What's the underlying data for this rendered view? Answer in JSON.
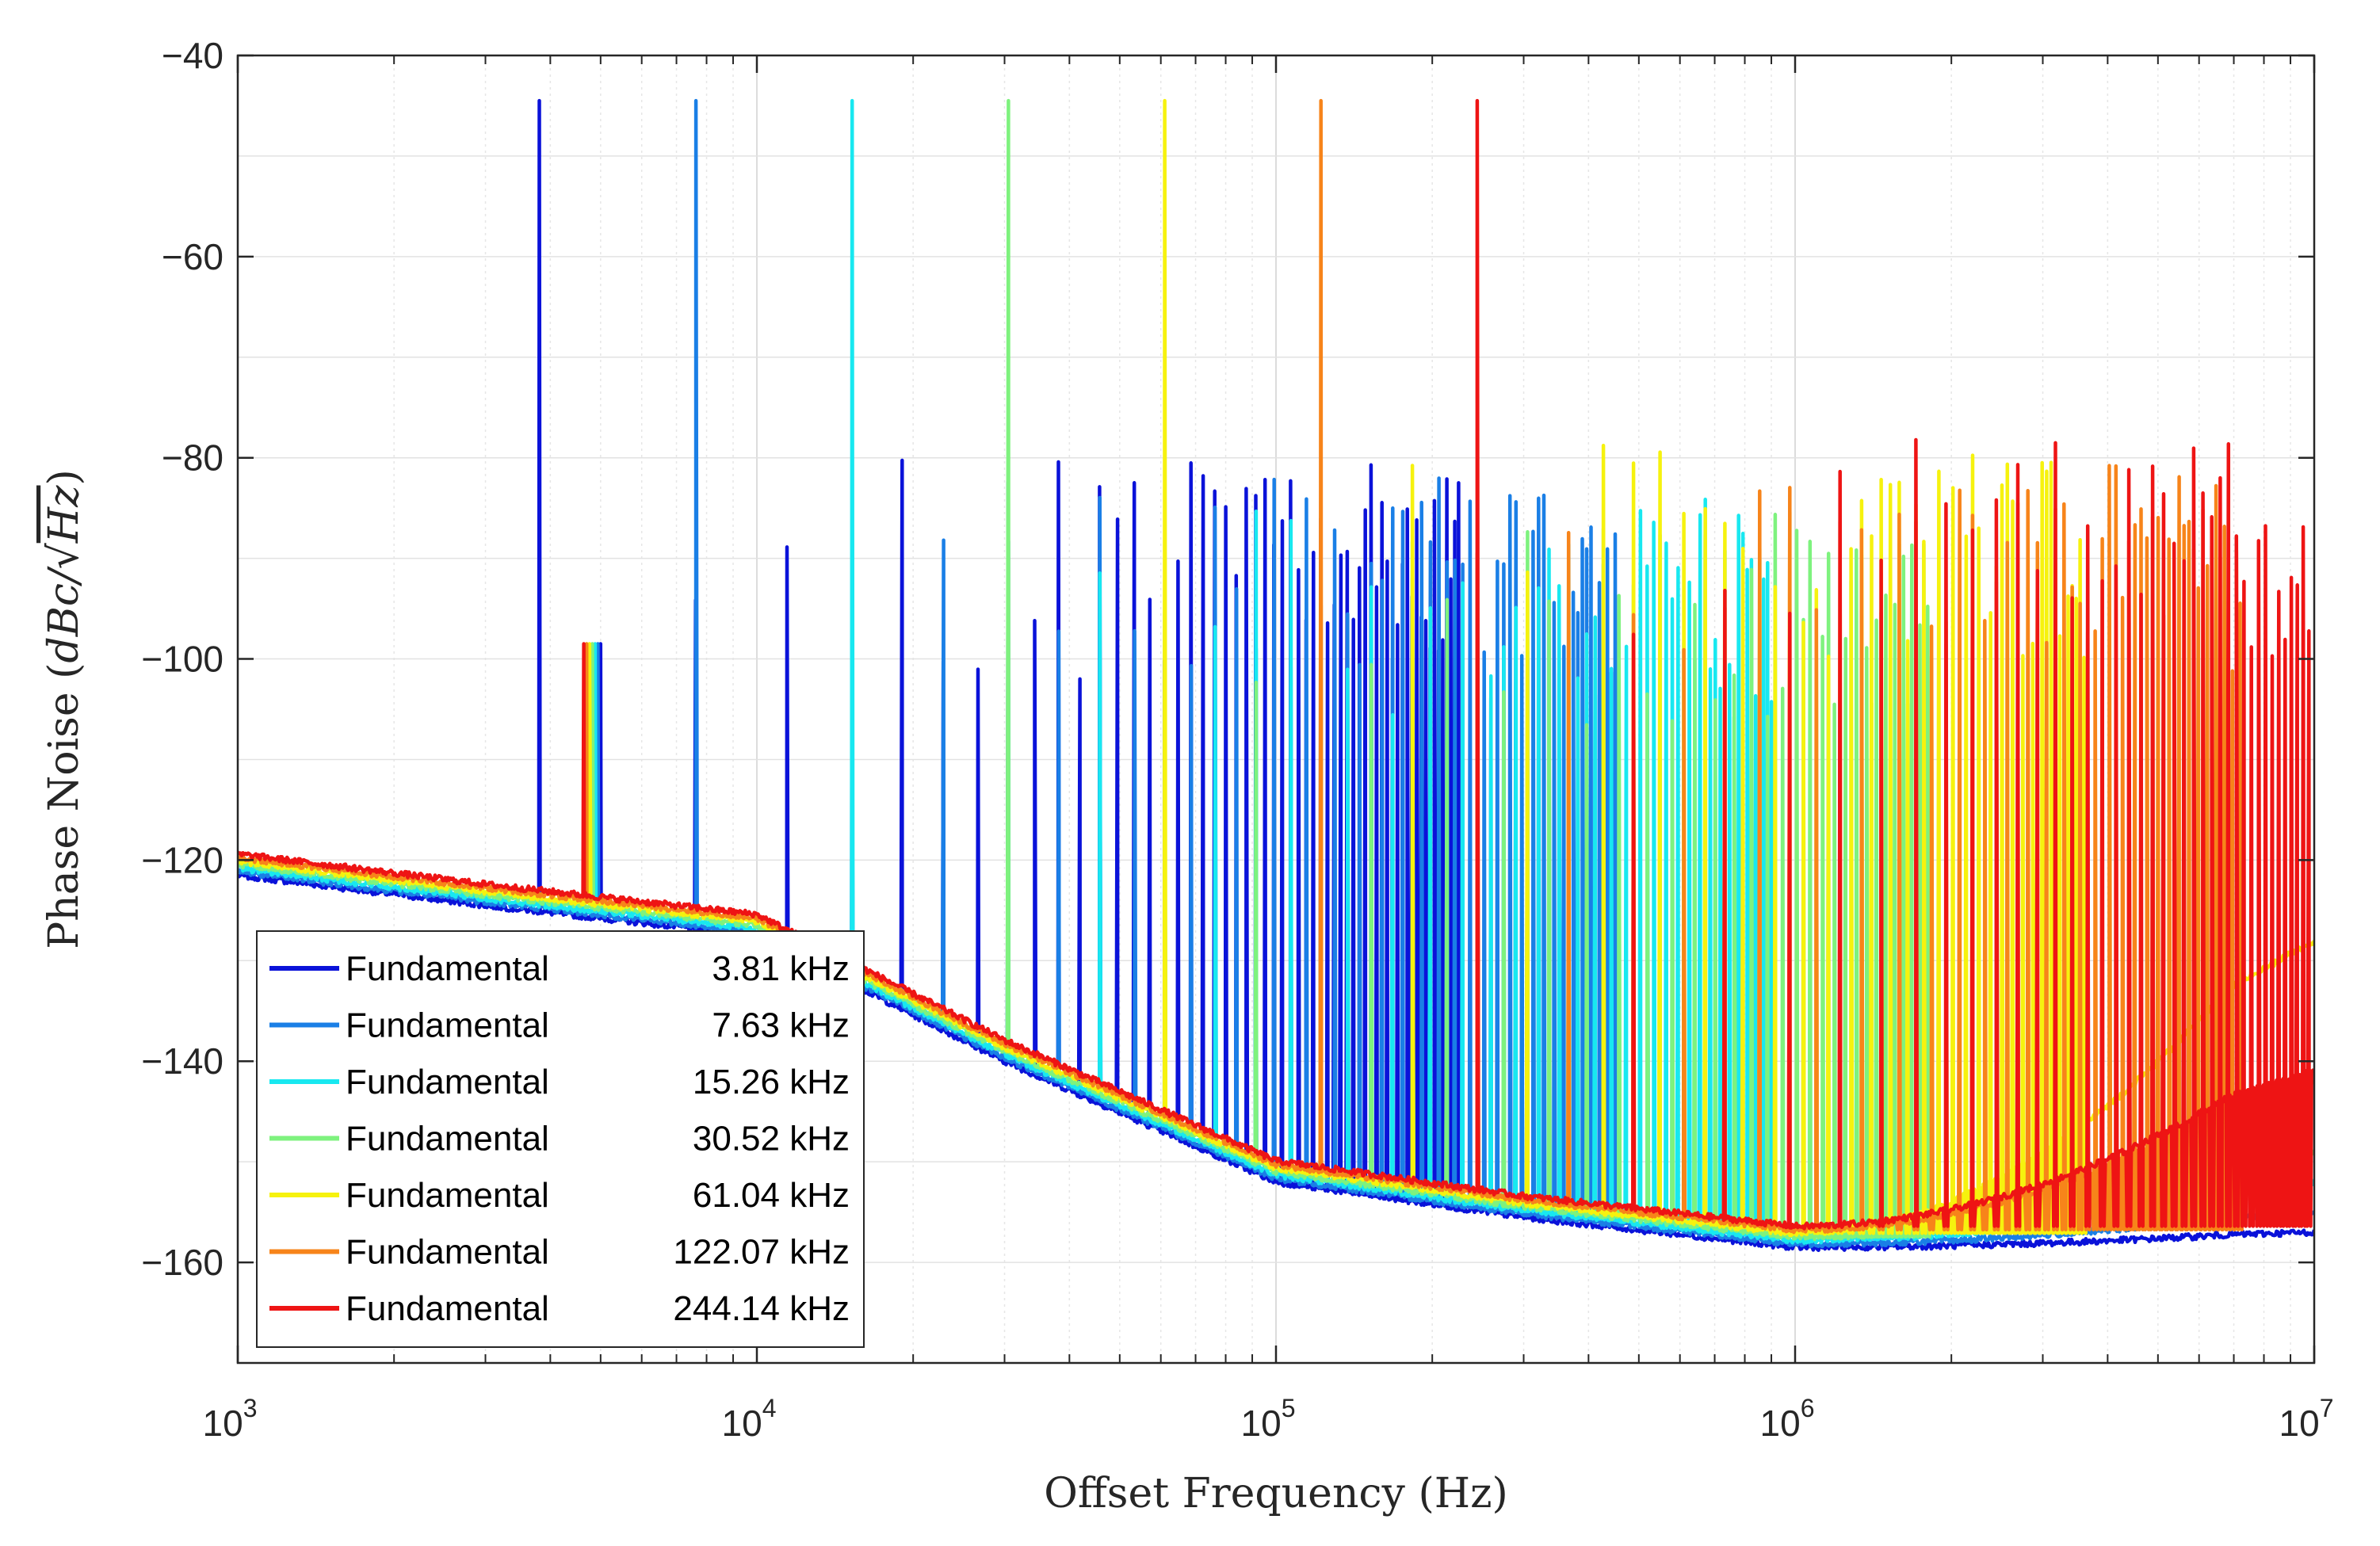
{
  "chart_data": {
    "type": "line",
    "title": "",
    "xlabel": "Offset Frequency (Hz)",
    "ylabel": {
      "prefix": "Phase Noise (",
      "math": "dBc/",
      "sqrt_arg": "Hz",
      "suffix": ")"
    },
    "xscale": "log",
    "xlim": [
      1000,
      10000000
    ],
    "ylim": [
      -170,
      -40
    ],
    "grid": true,
    "legend_position": "bottom-left",
    "x_ticks": [
      {
        "base": "10",
        "exp": "3"
      },
      {
        "base": "10",
        "exp": "4"
      },
      {
        "base": "10",
        "exp": "5"
      },
      {
        "base": "10",
        "exp": "6"
      },
      {
        "base": "10",
        "exp": "7"
      }
    ],
    "y_ticks": [
      "−40",
      "−60",
      "−80",
      "−100",
      "−120",
      "−140",
      "−160"
    ],
    "y_tick_values": [
      -40,
      -60,
      -80,
      -100,
      -120,
      -140,
      -160
    ],
    "series": [
      {
        "label": "Fundamental",
        "freq_label": "3.81 kHz",
        "fundamental_hz": 3810,
        "color": "#0a12d9",
        "spike_peak_db": -44.5,
        "harmonic_peak_db": -80,
        "floor_end_db": -157
      },
      {
        "label": "Fundamental",
        "freq_label": "7.63 kHz",
        "fundamental_hz": 7630,
        "color": "#1a7fe6",
        "spike_peak_db": -44.5,
        "harmonic_peak_db": -82,
        "floor_end_db": -155
      },
      {
        "label": "Fundamental",
        "freq_label": "15.26 kHz",
        "fundamental_hz": 15260,
        "color": "#18e8f0",
        "spike_peak_db": -44.5,
        "harmonic_peak_db": -84,
        "floor_end_db": -152
      },
      {
        "label": "Fundamental",
        "freq_label": "30.52 kHz",
        "fundamental_hz": 30520,
        "color": "#7ef27e",
        "spike_peak_db": -44.5,
        "harmonic_peak_db": -85,
        "floor_end_db": -149
      },
      {
        "label": "Fundamental",
        "freq_label": "61.04 kHz",
        "fundamental_hz": 61040,
        "color": "#f6f20e",
        "spike_peak_db": -44.5,
        "harmonic_peak_db": -78,
        "floor_end_db": -128
      },
      {
        "label": "Fundamental",
        "freq_label": "122.07 kHz",
        "fundamental_hz": 122070,
        "color": "#f7841a",
        "spike_peak_db": -44.5,
        "harmonic_peak_db": -80,
        "floor_end_db": -142
      },
      {
        "label": "Fundamental",
        "freq_label": "244.14 kHz",
        "fundamental_hz": 244140,
        "color": "#ee1414",
        "spike_peak_db": -44.5,
        "harmonic_peak_db": -78,
        "floor_end_db": -141
      }
    ],
    "low_freq_spur_hz": 5000,
    "low_freq_spur_db": -98.5,
    "noise_floor": [
      {
        "f": 1000,
        "db": -121.5
      },
      {
        "f": 3000,
        "db": -124.5
      },
      {
        "f": 10000,
        "db": -127.5
      },
      {
        "f": 30000,
        "db": -140
      },
      {
        "f": 100000,
        "db": -152
      },
      {
        "f": 300000,
        "db": -155.5
      },
      {
        "f": 1000000,
        "db": -158.5
      },
      {
        "f": 10000000,
        "db": -158.5
      }
    ]
  }
}
